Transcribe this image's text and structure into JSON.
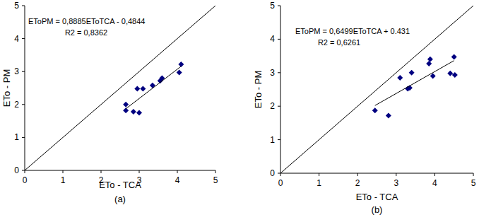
{
  "chart_data": [
    {
      "type": "scatter",
      "caption": "(a)",
      "x_label": "ETo - TCA",
      "y_label": "ETo - PM",
      "annotations": [
        "EToPM = 0,8885EToTCA - 0,4844",
        "R2 = 0,8362"
      ],
      "xlim": [
        0,
        5
      ],
      "ylim": [
        0,
        5
      ],
      "xticks": [
        0,
        1,
        2,
        3,
        4,
        5
      ],
      "yticks": [
        0,
        1,
        2,
        3,
        4,
        5
      ],
      "grid": false,
      "series": [
        {
          "type": "scatter",
          "marker": "diamond",
          "color": "#000080",
          "x": [
            2.65,
            2.65,
            2.85,
            3.0,
            2.95,
            3.1,
            3.35,
            3.55,
            3.6,
            4.05,
            4.1
          ],
          "values": [
            2.0,
            1.82,
            1.78,
            1.75,
            2.48,
            2.48,
            2.58,
            2.72,
            2.8,
            2.97,
            3.22
          ]
        },
        {
          "type": "line",
          "line_style": "solid",
          "color": "#000000",
          "x": [
            2.65,
            4.1
          ],
          "values": [
            1.87,
            3.16
          ]
        },
        {
          "type": "line",
          "line_style": "solid",
          "color": "#000000",
          "x": [
            0,
            5
          ],
          "values": [
            0,
            5
          ]
        }
      ]
    },
    {
      "type": "scatter",
      "caption": "(b)",
      "x_label": "ETo - TCA",
      "y_label": "ETo - PM",
      "annotations": [
        "EToPM = 0,6499EToTCA + 0.431",
        "R2 = 0,6261"
      ],
      "xlim": [
        0,
        5
      ],
      "ylim": [
        0,
        5
      ],
      "xticks": [
        0,
        1,
        2,
        3,
        4,
        5
      ],
      "yticks": [
        0,
        1,
        2,
        3,
        4,
        5
      ],
      "grid": false,
      "series": [
        {
          "type": "scatter",
          "marker": "diamond",
          "color": "#000080",
          "x": [
            2.45,
            2.8,
            3.1,
            3.3,
            3.35,
            3.4,
            3.85,
            3.88,
            3.95,
            4.4,
            4.5,
            4.52
          ],
          "values": [
            1.87,
            1.72,
            2.85,
            2.52,
            2.55,
            3.0,
            3.27,
            3.4,
            2.9,
            2.98,
            3.47,
            2.93
          ]
        },
        {
          "type": "line",
          "line_style": "solid",
          "color": "#000000",
          "x": [
            2.45,
            4.5
          ],
          "values": [
            2.02,
            3.36
          ]
        },
        {
          "type": "line",
          "line_style": "solid",
          "color": "#000000",
          "x": [
            0,
            5
          ],
          "values": [
            0,
            5
          ]
        }
      ]
    }
  ]
}
